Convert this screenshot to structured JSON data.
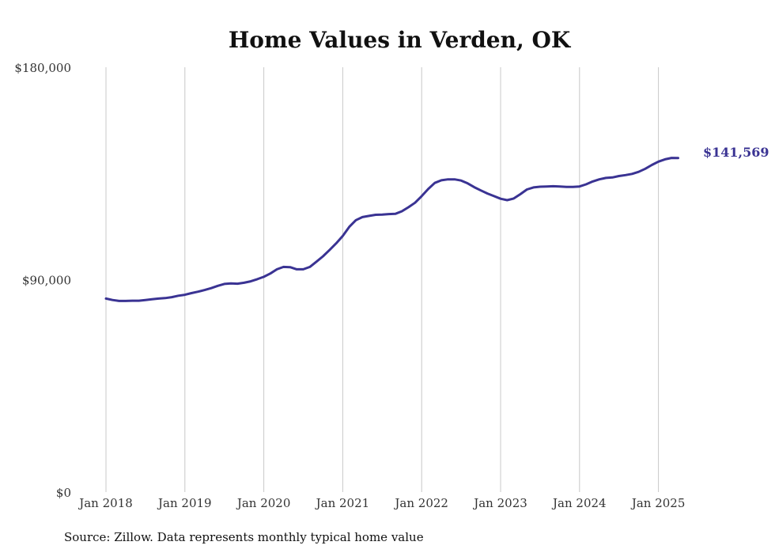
{
  "chart_data": {
    "type": "line",
    "title": "Home Values in Verden, OK",
    "xlabel": "",
    "ylabel": "",
    "ylim": [
      0,
      180000
    ],
    "y_ticks": [
      {
        "value": 0,
        "label": "$0"
      },
      {
        "value": 90000,
        "label": "$90,000"
      },
      {
        "value": 180000,
        "label": "$180,000"
      }
    ],
    "x_ticks": [
      {
        "value": "2018-01",
        "label": "Jan 2018"
      },
      {
        "value": "2019-01",
        "label": "Jan 2019"
      },
      {
        "value": "2020-01",
        "label": "Jan 2020"
      },
      {
        "value": "2021-01",
        "label": "Jan 2021"
      },
      {
        "value": "2022-01",
        "label": "Jan 2022"
      },
      {
        "value": "2023-01",
        "label": "Jan 2023"
      },
      {
        "value": "2024-01",
        "label": "Jan 2024"
      },
      {
        "value": "2025-01",
        "label": "Jan 2025"
      }
    ],
    "grid": {
      "vertical": true,
      "horizontal": false
    },
    "series": [
      {
        "color": "#3a3393",
        "points": [
          [
            "2018-01",
            82000
          ],
          [
            "2018-02",
            81400
          ],
          [
            "2018-03",
            81000
          ],
          [
            "2018-04",
            81000
          ],
          [
            "2018-05",
            81100
          ],
          [
            "2018-06",
            81100
          ],
          [
            "2018-07",
            81400
          ],
          [
            "2018-08",
            81700
          ],
          [
            "2018-09",
            82000
          ],
          [
            "2018-10",
            82200
          ],
          [
            "2018-11",
            82600
          ],
          [
            "2018-12",
            83200
          ],
          [
            "2019-01",
            83600
          ],
          [
            "2019-02",
            84300
          ],
          [
            "2019-03",
            84900
          ],
          [
            "2019-04",
            85600
          ],
          [
            "2019-05",
            86400
          ],
          [
            "2019-06",
            87400
          ],
          [
            "2019-07",
            88200
          ],
          [
            "2019-08",
            88400
          ],
          [
            "2019-09",
            88300
          ],
          [
            "2019-10",
            88700
          ],
          [
            "2019-11",
            89300
          ],
          [
            "2019-12",
            90200
          ],
          [
            "2020-01",
            91200
          ],
          [
            "2020-02",
            92600
          ],
          [
            "2020-03",
            94400
          ],
          [
            "2020-04",
            95400
          ],
          [
            "2020-05",
            95300
          ],
          [
            "2020-06",
            94400
          ],
          [
            "2020-07",
            94400
          ],
          [
            "2020-08",
            95400
          ],
          [
            "2020-09",
            97600
          ],
          [
            "2020-10",
            99900
          ],
          [
            "2020-11",
            102600
          ],
          [
            "2020-12",
            105400
          ],
          [
            "2021-01",
            108500
          ],
          [
            "2021-02",
            112400
          ],
          [
            "2021-03",
            115200
          ],
          [
            "2021-04",
            116500
          ],
          [
            "2021-05",
            117000
          ],
          [
            "2021-06",
            117500
          ],
          [
            "2021-07",
            117600
          ],
          [
            "2021-08",
            117800
          ],
          [
            "2021-09",
            117900
          ],
          [
            "2021-10",
            119000
          ],
          [
            "2021-11",
            120700
          ],
          [
            "2021-12",
            122600
          ],
          [
            "2022-01",
            125400
          ],
          [
            "2022-02",
            128400
          ],
          [
            "2022-03",
            131000
          ],
          [
            "2022-04",
            132100
          ],
          [
            "2022-05",
            132500
          ],
          [
            "2022-06",
            132500
          ],
          [
            "2022-07",
            132000
          ],
          [
            "2022-08",
            130800
          ],
          [
            "2022-09",
            129200
          ],
          [
            "2022-10",
            127800
          ],
          [
            "2022-11",
            126500
          ],
          [
            "2022-12",
            125400
          ],
          [
            "2023-01",
            124300
          ],
          [
            "2023-02",
            123700
          ],
          [
            "2023-03",
            124400
          ],
          [
            "2023-04",
            126200
          ],
          [
            "2023-05",
            128200
          ],
          [
            "2023-06",
            129100
          ],
          [
            "2023-07",
            129400
          ],
          [
            "2023-08",
            129500
          ],
          [
            "2023-09",
            129600
          ],
          [
            "2023-10",
            129500
          ],
          [
            "2023-11",
            129300
          ],
          [
            "2023-12",
            129300
          ],
          [
            "2024-01",
            129500
          ],
          [
            "2024-02",
            130400
          ],
          [
            "2024-03",
            131600
          ],
          [
            "2024-04",
            132500
          ],
          [
            "2024-05",
            133100
          ],
          [
            "2024-06",
            133300
          ],
          [
            "2024-07",
            133900
          ],
          [
            "2024-08",
            134300
          ],
          [
            "2024-09",
            134800
          ],
          [
            "2024-10",
            135700
          ],
          [
            "2024-11",
            137000
          ],
          [
            "2024-12",
            138600
          ],
          [
            "2025-01",
            140000
          ],
          [
            "2025-02",
            141000
          ],
          [
            "2025-03",
            141600
          ],
          [
            "2025-04",
            141569
          ]
        ]
      }
    ],
    "end_label": "$141,569"
  },
  "source": "Source: Zillow. Data represents monthly typical home value"
}
